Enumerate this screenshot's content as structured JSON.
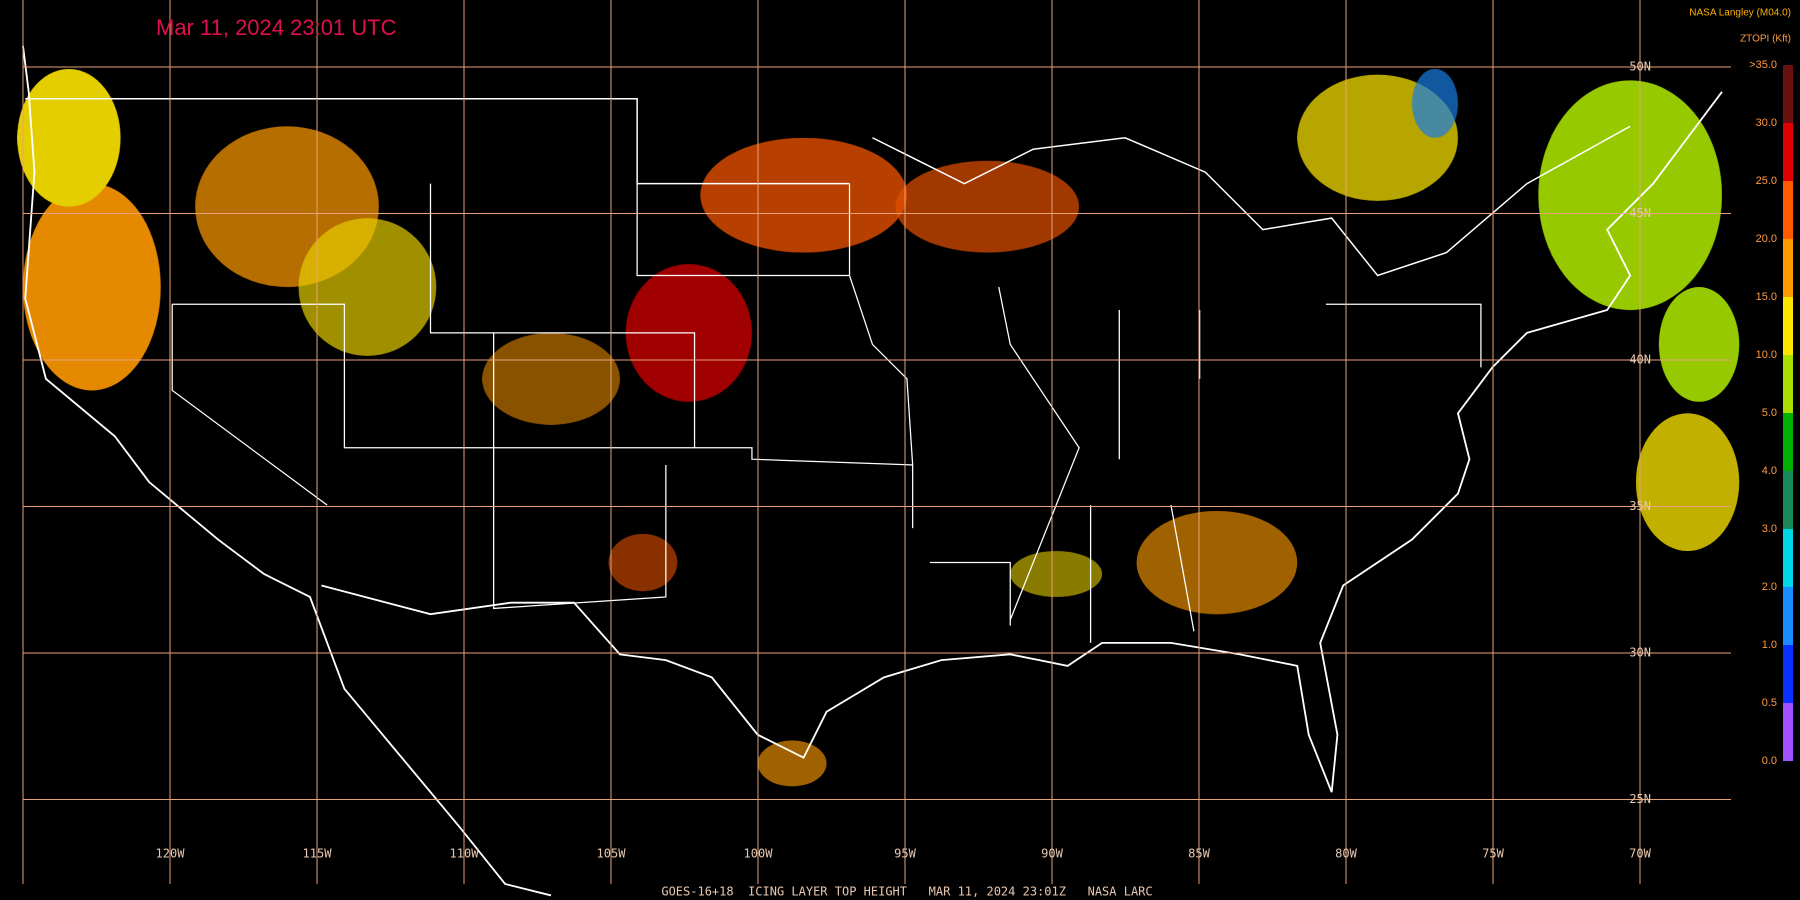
{
  "header": {
    "title": "Mar 11, 2024 23:01 UTC",
    "source": "NASA Langley (M04.0)",
    "variable": "ZTOPI (Kft)"
  },
  "grid": {
    "longitudes": [
      "120W",
      "115W",
      "110W",
      "105W",
      "100W",
      "95W",
      "90W",
      "85W",
      "80W",
      "75W",
      "70W"
    ],
    "latitudes": [
      "50N",
      "45N",
      "40N",
      "35N",
      "30N",
      "25N"
    ]
  },
  "colorbar": {
    "labels": [
      ">35.0",
      "30.0",
      "25.0",
      "20.0",
      "15.0",
      "10.0",
      "5.0",
      "4.0",
      "3.0",
      "2.0",
      "1.0",
      "0.5",
      "0.0"
    ],
    "colors": [
      "#6b0f0f",
      "#e00000",
      "#ff5a00",
      "#ff9a00",
      "#ffe600",
      "#a8e000",
      "#00b000",
      "#1a8a5a",
      "#00d8e8",
      "#1a8cff",
      "#0a30ff",
      "#a050ff"
    ]
  },
  "footer": "GOES-16+18  ICING LAYER TOP HEIGHT   MAR 11, 2024 23:01Z   NASA LARC"
}
